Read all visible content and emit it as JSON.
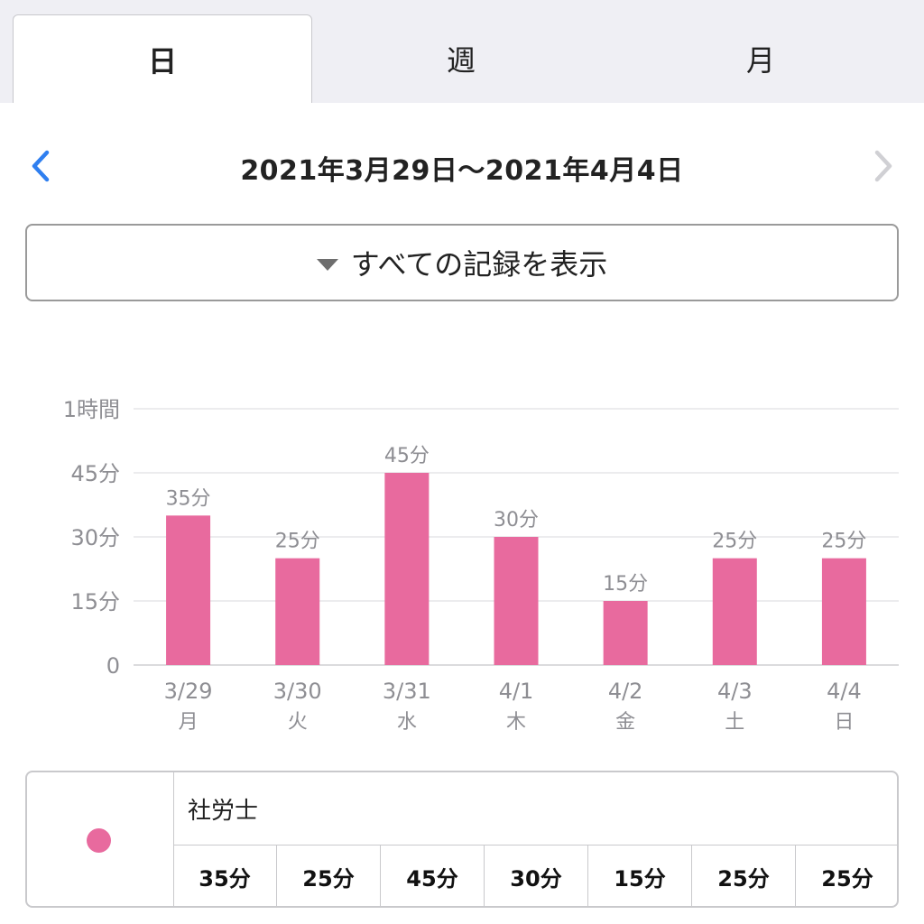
{
  "tabs": [
    {
      "label": "日",
      "active": true
    },
    {
      "label": "週",
      "active": false
    },
    {
      "label": "月",
      "active": false
    }
  ],
  "nav": {
    "date_range": "2021年3月29日〜2021年4月4日",
    "prev_icon": "chevron-left-icon",
    "next_icon": "chevron-right-icon"
  },
  "filter": {
    "label": "すべての記録を表示",
    "icon": "caret-down-icon"
  },
  "colors": {
    "accent_blue": "#2f7ff0",
    "bar_pink": "#e86a9e",
    "disabled_gray": "#c8c8cc"
  },
  "chart_data": {
    "type": "bar",
    "categories": [
      "3/29",
      "3/30",
      "3/31",
      "4/1",
      "4/2",
      "4/3",
      "4/4"
    ],
    "weekdays": [
      "月",
      "火",
      "水",
      "木",
      "金",
      "土",
      "日"
    ],
    "values": [
      35,
      25,
      45,
      30,
      15,
      25,
      25
    ],
    "value_labels": [
      "35分",
      "25分",
      "45分",
      "30分",
      "15分",
      "25分",
      "25分"
    ],
    "y_ticks": [
      0,
      15,
      30,
      45,
      60
    ],
    "y_tick_labels": [
      "0",
      "15分",
      "30分",
      "45分",
      "1時間"
    ],
    "ylim": [
      0,
      60
    ],
    "grid": true
  },
  "legend": {
    "name": "社労士",
    "values": [
      "35分",
      "25分",
      "45分",
      "30分",
      "15分",
      "25分",
      "25分"
    ]
  }
}
